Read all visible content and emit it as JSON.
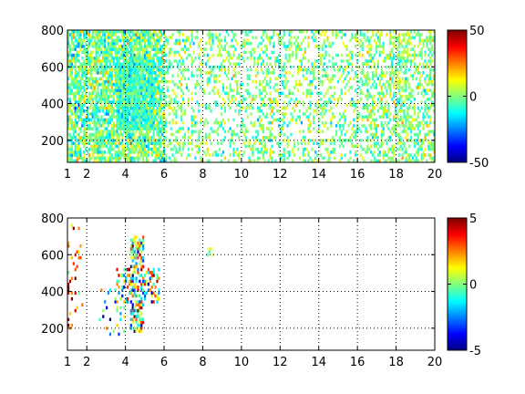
{
  "chart_data": [
    {
      "type": "heatmap",
      "title": "",
      "xlabel": "",
      "ylabel": "",
      "xlim": [
        1,
        20
      ],
      "ylim": [
        80,
        800
      ],
      "xticks": [
        "1",
        "2",
        "4",
        "6",
        "8",
        "10",
        "12",
        "14",
        "16",
        "18",
        "20"
      ],
      "yticks": [
        "200",
        "400",
        "600",
        "800"
      ],
      "grid": true,
      "colorbar": {
        "min": -50,
        "max": 50,
        "ticks": [
          "-50",
          "0",
          "50"
        ]
      },
      "colormap": "jet",
      "density_regions": [
        {
          "x": [
            1.0,
            6.0
          ],
          "y": [
            80,
            800
          ],
          "density": 0.75,
          "value_mean": -2,
          "value_spread": 14
        },
        {
          "x": [
            3.5,
            5.5
          ],
          "y": [
            250,
            650
          ],
          "density": 0.95,
          "value_mean": -6,
          "value_spread": 10
        },
        {
          "x": [
            6.0,
            20.0
          ],
          "y": [
            80,
            800
          ],
          "density": 0.28,
          "value_mean": 0,
          "value_spread": 12
        },
        {
          "x": [
            16.5,
            20.0
          ],
          "y": [
            80,
            800
          ],
          "density": 0.45,
          "value_mean": 1,
          "value_spread": 12
        }
      ]
    },
    {
      "type": "heatmap",
      "title": "",
      "xlabel": "",
      "ylabel": "",
      "xlim": [
        1,
        20
      ],
      "ylim": [
        80,
        800
      ],
      "xticks": [
        "1",
        "2",
        "4",
        "6",
        "8",
        "10",
        "12",
        "14",
        "16",
        "18",
        "20"
      ],
      "yticks": [
        "200",
        "400",
        "600",
        "800"
      ],
      "grid": true,
      "colorbar": {
        "min": -5,
        "max": 5,
        "ticks": [
          "-5",
          "0",
          "5"
        ]
      },
      "colormap": "jet",
      "density_regions": [
        {
          "x": [
            4.2,
            5.0
          ],
          "y": [
            180,
            700
          ],
          "density": 0.55,
          "value_mean": 0,
          "value_spread": 3.5
        },
        {
          "x": [
            3.4,
            5.8
          ],
          "y": [
            330,
            520
          ],
          "density": 0.35,
          "value_mean": 0,
          "value_spread": 3.5
        },
        {
          "x": [
            2.6,
            4.0
          ],
          "y": [
            150,
            420
          ],
          "density": 0.08,
          "value_mean": 0,
          "value_spread": 3.5
        },
        {
          "x": [
            1.0,
            1.8
          ],
          "y": [
            200,
            800
          ],
          "density": 0.1,
          "value_mean": 3,
          "value_spread": 2
        },
        {
          "x": [
            8.2,
            8.6
          ],
          "y": [
            600,
            640
          ],
          "density": 0.3,
          "value_mean": 0,
          "value_spread": 1.5
        }
      ]
    }
  ]
}
